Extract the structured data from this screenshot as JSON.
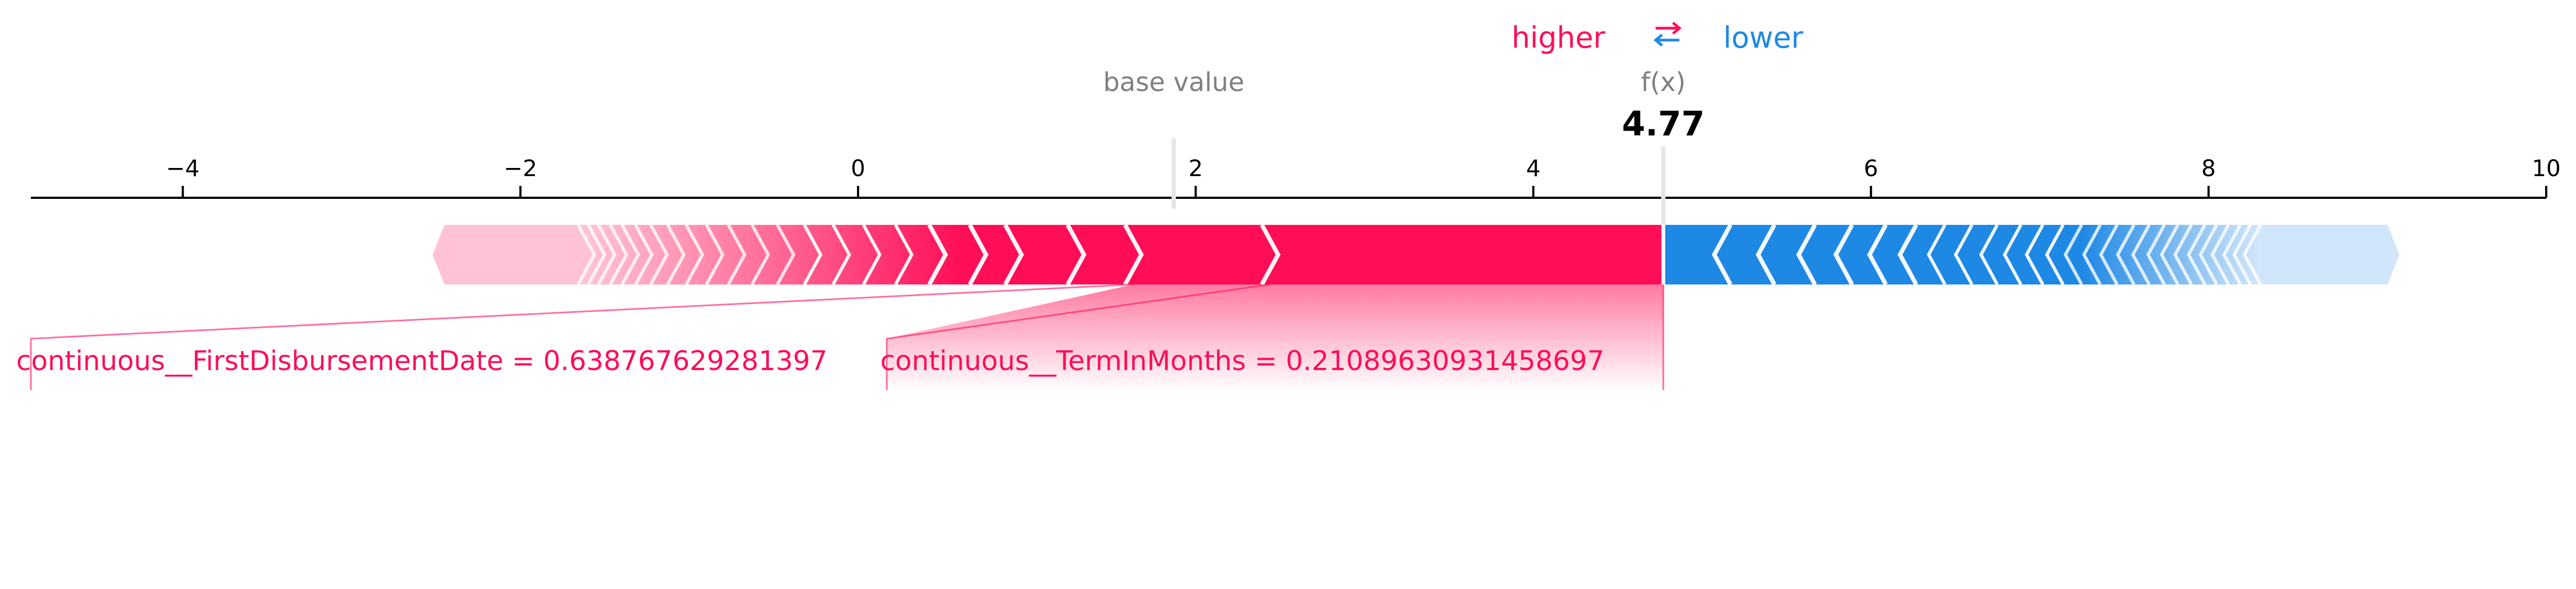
{
  "chart_data": {
    "type": "force",
    "legend": {
      "higher_label": "higher",
      "lower_label": "lower",
      "arrow_glyph_top": "⇄"
    },
    "base_value_label": "base value",
    "output_label": "f(x)",
    "output_value_text": "4.77",
    "base_value": 1.87,
    "output_value": 4.77,
    "xlim": [
      -4.9,
      10.0
    ],
    "ticks": [
      -4,
      -2,
      0,
      2,
      4,
      6,
      8,
      10
    ],
    "tick_labels": [
      "−4",
      "−2",
      "0",
      "2",
      "4",
      "6",
      "8",
      "10"
    ],
    "positive_range": [
      -2.45,
      4.77
    ],
    "negative_range": [
      4.77,
      9.06
    ],
    "positive_chevrons": [
      4.77,
      2.44,
      1.63,
      1.29,
      0.92,
      0.71,
      0.47,
      0.27,
      0.08,
      -0.1,
      -0.27,
      -0.43,
      -0.58,
      -0.72,
      -0.85,
      -0.97,
      -1.08,
      -1.18,
      -1.27,
      -1.35,
      -1.42,
      -1.49,
      -1.55,
      -1.61
    ],
    "negative_chevrons": [
      5.12,
      5.38,
      5.62,
      5.84,
      6.04,
      6.22,
      6.39,
      6.55,
      6.7,
      6.84,
      6.97,
      7.09,
      7.2,
      7.31,
      7.41,
      7.51,
      7.6,
      7.69,
      7.77,
      7.85,
      7.93,
      8.0,
      8.07,
      8.14,
      8.2,
      8.26
    ],
    "features": [
      {
        "label": "continuous__FirstDisbursementDate = 0.638767629281397",
        "effect": "higher",
        "segment": [
          -4.9,
          1.63
        ]
      },
      {
        "label": "continuous__TermInMonths = 0.21089630931458697",
        "effect": "higher",
        "segment": [
          0.17,
          2.44
        ]
      }
    ],
    "colors": {
      "positive": "#ff0d57",
      "positive_faded": "#ffc3d5",
      "negative": "#1e88e5",
      "negative_faded": "#d1e6fa",
      "base_text": "#808080",
      "axis": "#000000"
    }
  }
}
